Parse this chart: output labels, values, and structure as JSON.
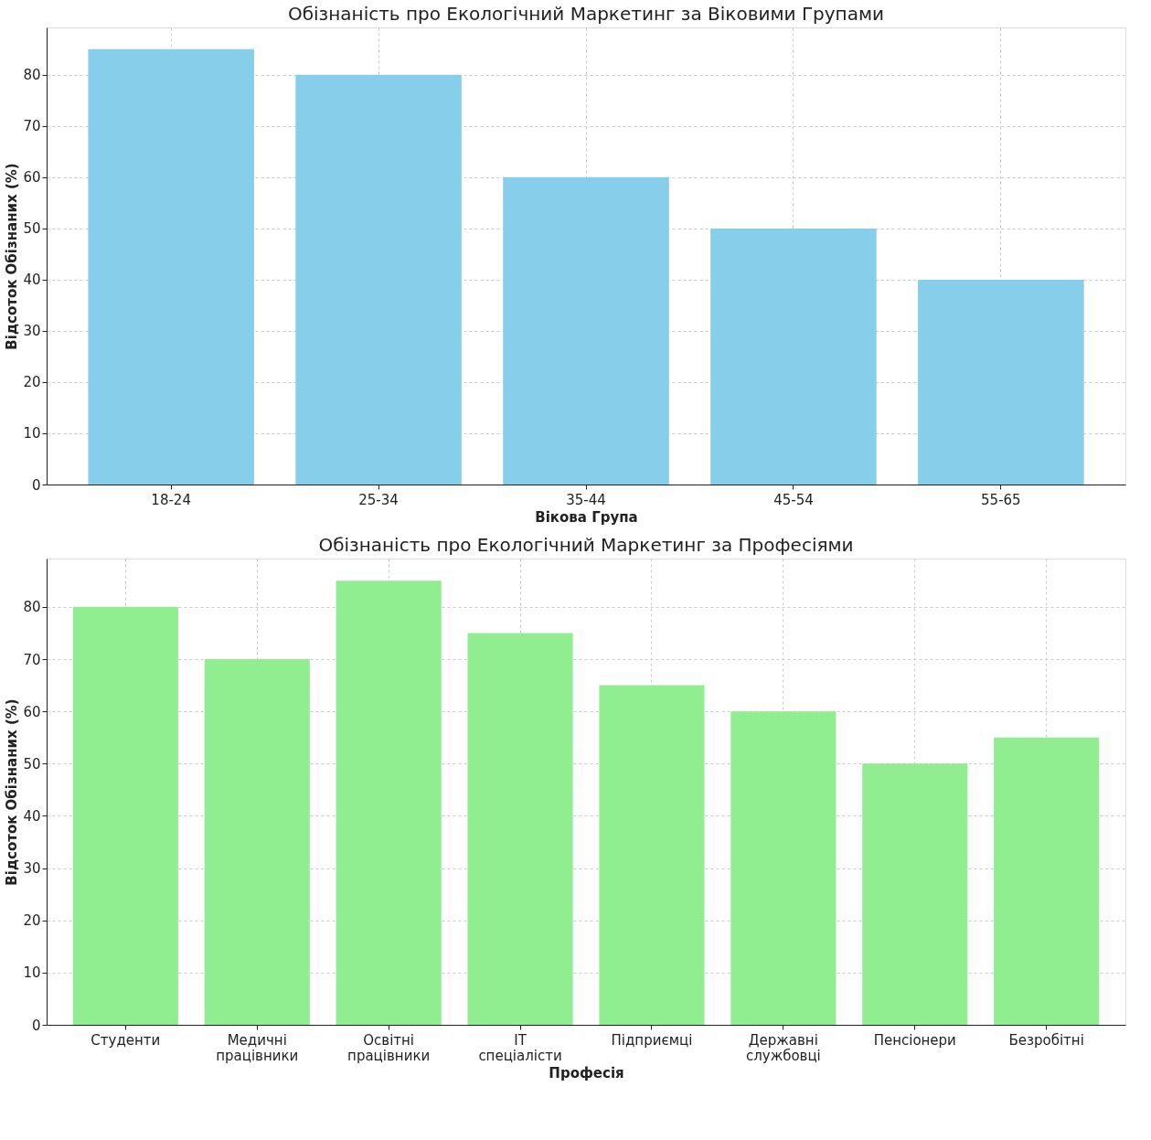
{
  "chart_data": [
    {
      "type": "bar",
      "title": "Обізнаність про Екологічний Маркетинг за Віковими Групами",
      "xlabel": "Вікова Група",
      "ylabel": "Відсоток Обізнаних (%)",
      "categories": [
        "18-24",
        "25-34",
        "35-44",
        "45-54",
        "55-65"
      ],
      "values": [
        85,
        80,
        60,
        50,
        40
      ],
      "color": "#87ceeb",
      "ylim": [
        0,
        89.25
      ],
      "yticks": [
        0,
        10,
        20,
        30,
        40,
        50,
        60,
        70,
        80
      ],
      "grid": true
    },
    {
      "type": "bar",
      "title": "Обізнаність про Екологічний Маркетинг за Професіями",
      "xlabel": "Професія",
      "ylabel": "Відсоток Обізнаних (%)",
      "categories": [
        "Студенти",
        "Медичні працівники",
        "Освітні працівники",
        "IT спеціалісти",
        "Підприємці",
        "Державні службовці",
        "Пенсіонери",
        "Безробітні"
      ],
      "values": [
        80,
        70,
        85,
        75,
        65,
        60,
        50,
        55
      ],
      "color": "#90ee90",
      "ylim": [
        0,
        89.25
      ],
      "yticks": [
        0,
        10,
        20,
        30,
        40,
        50,
        60,
        70,
        80
      ],
      "grid": true
    }
  ]
}
